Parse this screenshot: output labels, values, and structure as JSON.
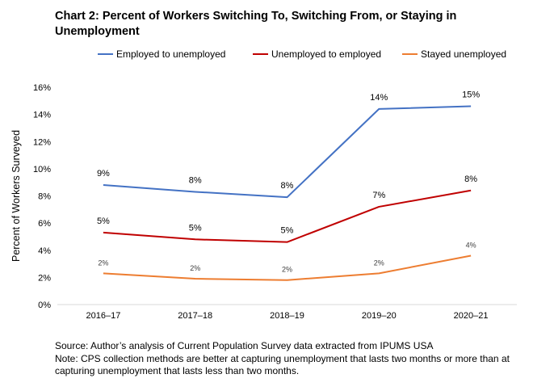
{
  "chart": {
    "title": "Chart 2: Percent of Workers Switching To, Switching From, or Staying in Unemployment",
    "source": "Source: Author’s analysis of Current Population Survey data extracted from IPUMS USA",
    "note": "Note: CPS collection methods are better at capturing unemployment that lasts two months or more than at capturing unemployment that lasts less than two months."
  },
  "chart_data": {
    "type": "line",
    "title": "Chart 2: Percent of Workers Switching To, Switching From, or Staying in Unemployment",
    "xlabel": "",
    "ylabel": "Percent of Workers Surveyed",
    "categories": [
      "2016–17",
      "2017–18",
      "2018–19",
      "2019–20",
      "2020–21"
    ],
    "ylim": [
      0,
      16
    ],
    "yticks": [
      0,
      2,
      4,
      6,
      8,
      10,
      12,
      14,
      16
    ],
    "ytick_labels": [
      "0%",
      "2%",
      "4%",
      "6%",
      "8%",
      "10%",
      "12%",
      "14%",
      "16%"
    ],
    "grid": false,
    "legend_position": "top",
    "series": [
      {
        "name": "Employed to unemployed",
        "color": "#4472c4",
        "values": [
          8.8,
          8.3,
          7.9,
          14.4,
          14.6
        ],
        "labels": [
          "9%",
          "8%",
          "8%",
          "14%",
          "15%"
        ],
        "label_style": "large"
      },
      {
        "name": "Unemployed to employed",
        "color": "#c00000",
        "values": [
          5.3,
          4.8,
          4.6,
          7.2,
          8.4
        ],
        "labels": [
          "5%",
          "5%",
          "5%",
          "7%",
          "8%"
        ],
        "label_style": "large"
      },
      {
        "name": "Stayed unemployed",
        "color": "#ed7d31",
        "values": [
          2.3,
          1.9,
          1.8,
          2.3,
          3.6
        ],
        "labels": [
          "2%",
          "2%",
          "2%",
          "2%",
          "4%"
        ],
        "label_style": "small"
      }
    ]
  }
}
